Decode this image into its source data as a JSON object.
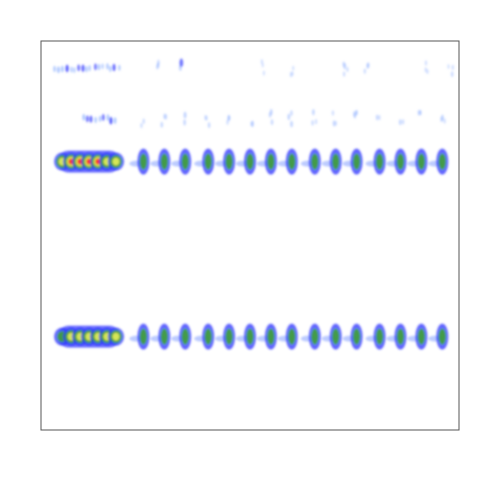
{
  "chart_data": {
    "type": "heatmap",
    "title": "",
    "xlabel": "",
    "ylabel": "",
    "axes_visible": false,
    "grid": false,
    "legend": "none",
    "x_range": [
      0,
      100
    ],
    "y_range": [
      0,
      100
    ],
    "colormap": [
      "#ffffff",
      "#2d33ff",
      "#3fa235",
      "#e6ee5a",
      "#ff2222"
    ],
    "bands": [
      {
        "name": "",
        "y_center": 69,
        "continuous_segment": {
          "x_start": 4,
          "x_end": 19,
          "density_profile": [
            0.75,
            0.95,
            1.0,
            0.95,
            0.9,
            0.85,
            0.8
          ]
        },
        "pulse_x": [
          24.5,
          29.5,
          34.5,
          40,
          45,
          50,
          55,
          60,
          65.5,
          70.5,
          75.5,
          81,
          86,
          91,
          96
        ],
        "pulse_density": [
          0.55,
          0.5,
          0.6,
          0.55,
          0.55,
          0.5,
          0.55,
          0.5,
          0.55,
          0.5,
          0.5,
          0.5,
          0.5,
          0.5,
          0.5
        ]
      },
      {
        "name": "",
        "y_center": 24,
        "continuous_segment": {
          "x_start": 4,
          "x_end": 19,
          "density_profile": [
            0.6,
            0.7,
            0.75,
            0.75,
            0.7,
            0.65,
            0.7
          ]
        },
        "pulse_x": [
          24.5,
          29.5,
          34.5,
          40,
          45,
          50,
          55,
          60,
          65.5,
          70.5,
          75.5,
          81,
          86,
          91,
          96
        ],
        "pulse_density": [
          0.55,
          0.55,
          0.55,
          0.55,
          0.55,
          0.55,
          0.55,
          0.55,
          0.55,
          0.5,
          0.55,
          0.55,
          0.55,
          0.5,
          0.55
        ]
      },
      {
        "name": "",
        "y_center": 80,
        "continuous_segment": {
          "x_start": 10,
          "x_end": 19,
          "density_profile": [
            0.25,
            0.3,
            0.25
          ]
        },
        "pulse_x": [
          24.5,
          29.5,
          34.5,
          40,
          45,
          50,
          55,
          60,
          65.5,
          70.5,
          75.5,
          81,
          86,
          91,
          96
        ],
        "pulse_density": [
          0.15,
          0.2,
          0.18,
          0.15,
          0.15,
          0.15,
          0.18,
          0.15,
          0.15,
          0.15,
          0.15,
          0.15,
          0.15,
          0.12,
          0.15
        ]
      },
      {
        "name": "",
        "y_center": 93,
        "continuous_segment": {
          "x_start": 3,
          "x_end": 19,
          "density_profile": [
            0.15,
            0.2,
            0.25,
            0.3
          ]
        },
        "pulse_x": [
          28,
          33,
          53,
          60,
          73,
          78,
          92,
          98
        ],
        "pulse_density": [
          0.12,
          0.35,
          0.12,
          0.1,
          0.15,
          0.12,
          0.1,
          0.12
        ]
      }
    ]
  }
}
